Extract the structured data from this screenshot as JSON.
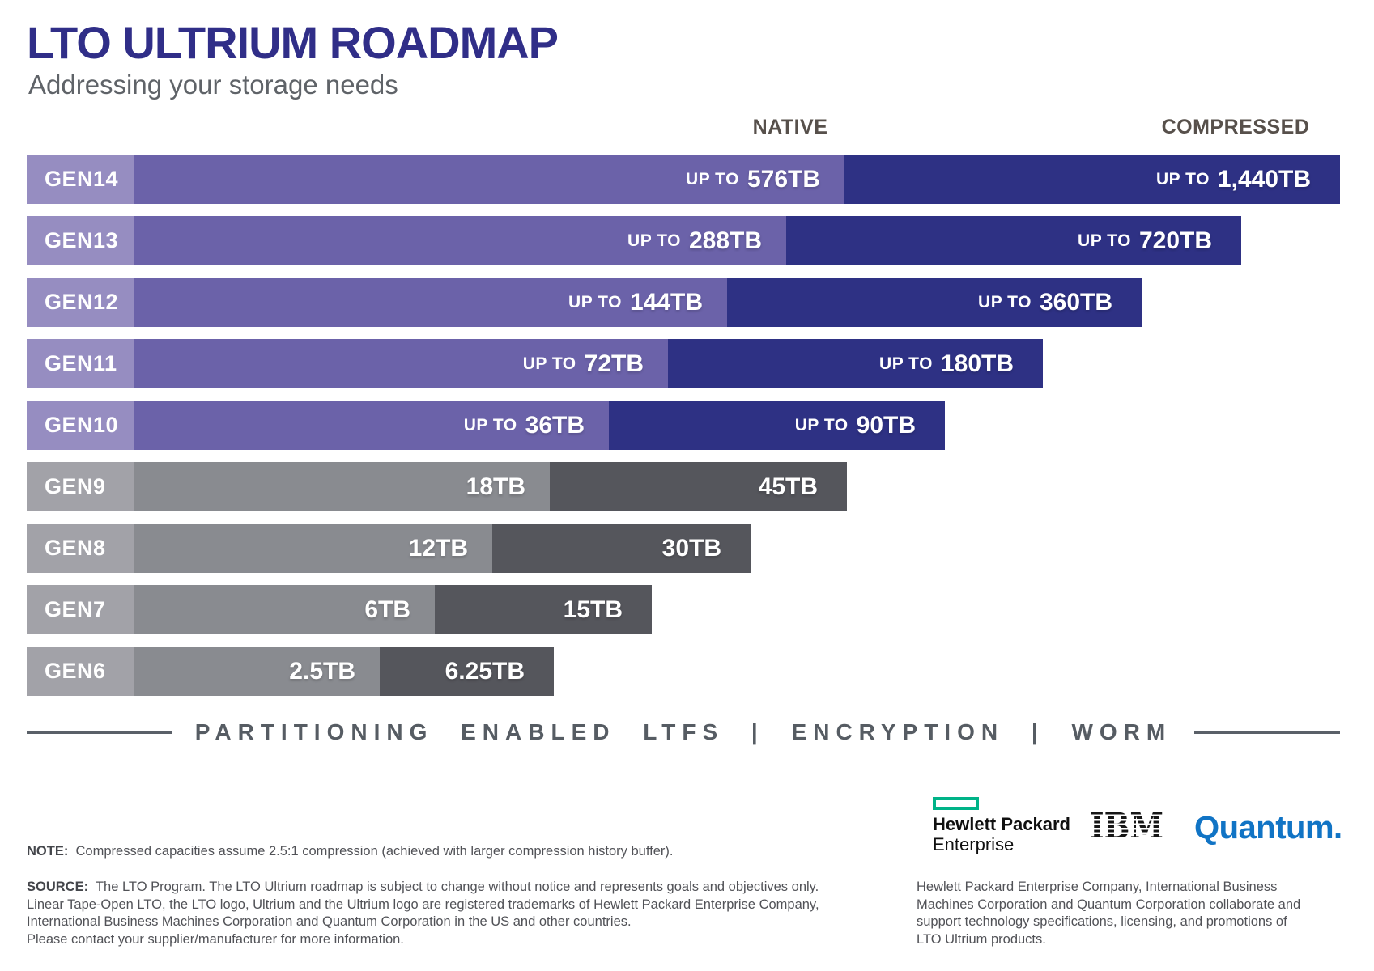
{
  "header": {
    "title": "LTO ULTRIUM ROADMAP",
    "subtitle": "Addressing your storage needs"
  },
  "columns": {
    "native": "NATIVE",
    "compressed": "COMPRESSED"
  },
  "chart_data": {
    "type": "bar",
    "orientation": "horizontal",
    "unit": "TB",
    "title": "LTO ULTRIUM ROADMAP",
    "subtitle": "Addressing your storage needs",
    "categories": [
      "GEN14",
      "GEN13",
      "GEN12",
      "GEN11",
      "GEN10",
      "GEN9",
      "GEN8",
      "GEN7",
      "GEN6"
    ],
    "series": [
      {
        "name": "Native",
        "values": [
          576,
          288,
          144,
          72,
          36,
          18,
          12,
          6,
          2.5
        ]
      },
      {
        "name": "Compressed",
        "values": [
          1440,
          720,
          360,
          180,
          90,
          45,
          30,
          15,
          6.25
        ]
      }
    ],
    "legend_position": "top",
    "grid": false,
    "layout_note": "bar lengths are stepped per generation, not strictly proportional to values",
    "compression_assumption": "2.5:1"
  },
  "rows": [
    {
      "gen": "GEN14",
      "theme": "purple",
      "prefix": "UP TO",
      "native_label": "576TB",
      "compressed_label": "1,440TB",
      "px": {
        "split": 1043,
        "end": 1655
      }
    },
    {
      "gen": "GEN13",
      "theme": "purple",
      "prefix": "UP TO",
      "native_label": "288TB",
      "compressed_label": "720TB",
      "px": {
        "split": 971,
        "end": 1533
      }
    },
    {
      "gen": "GEN12",
      "theme": "purple",
      "prefix": "UP TO",
      "native_label": "144TB",
      "compressed_label": "360TB",
      "px": {
        "split": 898,
        "end": 1410
      }
    },
    {
      "gen": "GEN11",
      "theme": "purple",
      "prefix": "UP TO",
      "native_label": "72TB",
      "compressed_label": "180TB",
      "px": {
        "split": 825,
        "end": 1288
      }
    },
    {
      "gen": "GEN10",
      "theme": "purple",
      "prefix": "UP TO",
      "native_label": "36TB",
      "compressed_label": "90TB",
      "px": {
        "split": 752,
        "end": 1167
      }
    },
    {
      "gen": "GEN9",
      "theme": "gray",
      "prefix": "",
      "native_label": "18TB",
      "compressed_label": "45TB",
      "px": {
        "split": 679,
        "end": 1046
      }
    },
    {
      "gen": "GEN8",
      "theme": "gray",
      "prefix": "",
      "native_label": "12TB",
      "compressed_label": "30TB",
      "px": {
        "split": 608,
        "end": 927
      }
    },
    {
      "gen": "GEN7",
      "theme": "gray",
      "prefix": "",
      "native_label": "6TB",
      "compressed_label": "15TB",
      "px": {
        "split": 537,
        "end": 805
      }
    },
    {
      "gen": "GEN6",
      "theme": "gray",
      "prefix": "",
      "native_label": "2.5TB",
      "compressed_label": "6.25TB",
      "px": {
        "split": 469,
        "end": 684
      }
    }
  ],
  "features": {
    "text": "PARTITIONING ENABLED LTFS | ENCRYPTION | WORM"
  },
  "footnotes": {
    "note_label": "NOTE:",
    "note_text": "Compressed capacities assume 2.5:1 compression (achieved with larger compression history buffer).",
    "source_label": "SOURCE:",
    "source_lines": [
      "The LTO Program. The LTO Ultrium roadmap is subject to change without notice and represents goals and objectives only.",
      "Linear Tape-Open LTO, the LTO logo, Ultrium and the Ultrium logo are registered trademarks of Hewlett Packard Enterprise Company,",
      "International Business Machines Corporation and Quantum Corporation in the US and other countries.",
      "Please contact your supplier/manufacturer for more information."
    ]
  },
  "partners": {
    "hpe_line1": "Hewlett Packard",
    "hpe_line2": "Enterprise",
    "ibm": "IBM",
    "quantum": "Quantum.",
    "collab_lines": [
      "Hewlett Packard Enterprise Company, International Business",
      "Machines Corporation and Quantum Corporation collaborate and",
      "support technology specifications, licensing, and promotions of",
      "LTO Ultrium products."
    ]
  },
  "colors": {
    "title": "#302e88",
    "purple_label": "#968dc1",
    "purple_native": "#6b62a9",
    "purple_compressed": "#2e3184",
    "gray_label": "#a2a2a8",
    "gray_native": "#898b90",
    "gray_compressed": "#55565c",
    "hpe_green": "#00b388",
    "quantum_blue": "#1174c5",
    "ibm_black": "#161616",
    "muted_text": "#565c63"
  }
}
